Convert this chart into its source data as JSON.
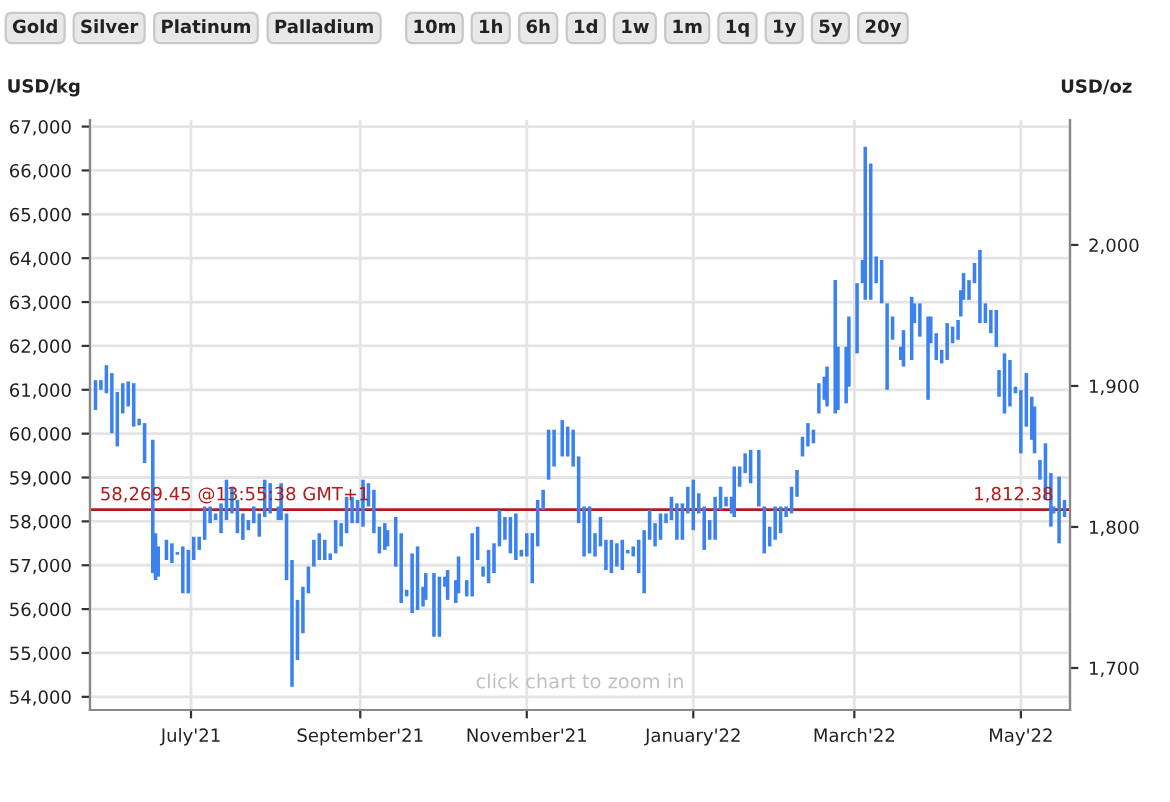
{
  "chart_data": {
    "type": "bar",
    "ylabel": "USD/kg",
    "y2label": "USD/oz",
    "annotations": [
      {
        "text": "1,812.38",
        "x": "2022-05-13",
        "y": 58269.45
      },
      "Gold",
      "Silver",
      "Platinum",
      "Palladium",
      "10m",
      "1h",
      "6h",
      "1d",
      "1w",
      "1m",
      "1q",
      "1y",
      "5y",
      "20y",
      "click chart to zoom in"
    ],
    "x": [
      "2021-05-27",
      "2021-05-29",
      "2021-05-31",
      "2021-06-02",
      "2021-06-04",
      "2021-06-06",
      "2021-06-08",
      "2021-06-10",
      "2021-06-12",
      "2021-06-14",
      "2021-06-17",
      "2021-06-18",
      "2021-06-19",
      "2021-06-22",
      "2021-06-24",
      "2021-06-26",
      "2021-06-28",
      "2021-06-30",
      "2021-07-02",
      "2021-07-04",
      "2021-07-06",
      "2021-07-08",
      "2021-07-10",
      "2021-07-12",
      "2021-07-14",
      "2021-07-16",
      "2021-07-18",
      "2021-07-20",
      "2021-07-22",
      "2021-07-24",
      "2021-07-26",
      "2021-07-28",
      "2021-07-30",
      "2021-08-02",
      "2021-08-03",
      "2021-08-05",
      "2021-08-07",
      "2021-08-09",
      "2021-08-11",
      "2021-08-13",
      "2021-08-15",
      "2021-08-17",
      "2021-08-19",
      "2021-08-21",
      "2021-08-23",
      "2021-08-25",
      "2021-08-27",
      "2021-08-29",
      "2021-08-31",
      "2021-09-02",
      "2021-09-04",
      "2021-09-06",
      "2021-09-08",
      "2021-09-10",
      "2021-09-11",
      "2021-09-14",
      "2021-09-16",
      "2021-09-18",
      "2021-09-20",
      "2021-09-22",
      "2021-09-24",
      "2021-09-25",
      "2021-09-28",
      "2021-09-30",
      "2021-10-02",
      "2021-10-03",
      "2021-10-06",
      "2021-10-07",
      "2021-10-10",
      "2021-10-12",
      "2021-10-14",
      "2021-10-16",
      "2021-10-18",
      "2021-10-20",
      "2021-10-22",
      "2021-10-24",
      "2021-10-26",
      "2021-10-28",
      "2021-10-30",
      "2021-11-01",
      "2021-11-03",
      "2021-11-05",
      "2021-11-07",
      "2021-11-09",
      "2021-11-11",
      "2021-11-14",
      "2021-11-16",
      "2021-11-18",
      "2021-11-20",
      "2021-11-22",
      "2021-11-24",
      "2021-11-26",
      "2021-11-28",
      "2021-11-30",
      "2021-12-02",
      "2021-12-04",
      "2021-12-06",
      "2021-12-08",
      "2021-12-10",
      "2021-12-12",
      "2021-12-14",
      "2021-12-16",
      "2021-12-18",
      "2021-12-20",
      "2021-12-22",
      "2021-12-24",
      "2021-12-26",
      "2021-12-28",
      "2021-12-30",
      "2022-01-01",
      "2022-01-03",
      "2022-01-05",
      "2022-01-07",
      "2022-01-09",
      "2022-01-11",
      "2022-01-13",
      "2022-01-15",
      "2022-01-16",
      "2022-01-18",
      "2022-01-20",
      "2022-01-22",
      "2022-01-25",
      "2022-01-27",
      "2022-01-29",
      "2022-01-31",
      "2022-02-02",
      "2022-02-04",
      "2022-02-06",
      "2022-02-08",
      "2022-02-10",
      "2022-02-12",
      "2022-02-14",
      "2022-02-16",
      "2022-02-18",
      "2022-02-19",
      "2022-02-22",
      "2022-02-23",
      "2022-02-26",
      "2022-02-27",
      "2022-03-02",
      "2022-03-04",
      "2022-03-05",
      "2022-03-07",
      "2022-03-09",
      "2022-03-11",
      "2022-03-13",
      "2022-03-15",
      "2022-03-18",
      "2022-03-19",
      "2022-03-22",
      "2022-03-23",
      "2022-03-25",
      "2022-03-28",
      "2022-03-29",
      "2022-03-31",
      "2022-04-02",
      "2022-04-04",
      "2022-04-06",
      "2022-04-08",
      "2022-04-09",
      "2022-04-10",
      "2022-04-12",
      "2022-04-14",
      "2022-04-16",
      "2022-04-18",
      "2022-04-20",
      "2022-04-22",
      "2022-04-23",
      "2022-04-25",
      "2022-04-27",
      "2022-04-29",
      "2022-05-01",
      "2022-05-03",
      "2022-05-05",
      "2022-05-06",
      "2022-05-08",
      "2022-05-10",
      "2022-05-12",
      "2022-05-13",
      "2022-05-15",
      "2022-05-17"
    ],
    "base": [
      60540,
      61000,
      60920,
      60010,
      59710,
      60460,
      60620,
      60160,
      60190,
      59330,
      56820,
      56660,
      56740,
      57120,
      57050,
      57240,
      56360,
      56360,
      57120,
      57350,
      57580,
      57960,
      58030,
      57730,
      58030,
      58180,
      57730,
      57580,
      57800,
      57960,
      57650,
      58100,
      58180,
      58030,
      58030,
      56660,
      54230,
      54840,
      55450,
      56360,
      56970,
      57120,
      57120,
      57120,
      57270,
      57430,
      57730,
      57960,
      57960,
      57880,
      58340,
      57730,
      57270,
      57350,
      57430,
      56970,
      56140,
      56290,
      55910,
      55980,
      56060,
      56210,
      55370,
      55370,
      56510,
      56210,
      56140,
      56360,
      56290,
      56290,
      57120,
      56740,
      56590,
      56820,
      57430,
      57580,
      57270,
      57120,
      57200,
      57200,
      56590,
      57430,
      58260,
      58950,
      59250,
      59480,
      59480,
      59250,
      57960,
      57200,
      57270,
      57200,
      57430,
      56890,
      56820,
      56970,
      56890,
      57270,
      57200,
      56820,
      56360,
      57580,
      57430,
      57580,
      57960,
      58030,
      57580,
      57580,
      58180,
      57800,
      58180,
      57350,
      57580,
      57580,
      58260,
      58340,
      58180,
      58100,
      58790,
      59100,
      58870,
      58340,
      57270,
      57430,
      57580,
      57730,
      58100,
      58180,
      58560,
      59480,
      59710,
      59780,
      60460,
      60770,
      60620,
      60460,
      60540,
      60690,
      61070,
      61830,
      63430,
      63050,
      63050,
      63430,
      62970,
      61000,
      62140,
      61680,
      61530,
      61680,
      62520,
      62210,
      60770,
      62060,
      61680,
      61600,
      61680,
      62060,
      62140,
      62670,
      63050,
      63050,
      63430,
      62520,
      62520,
      62290,
      61980,
      60840,
      60460,
      60620,
      60920,
      59550,
      60160,
      59860,
      59550,
      58950,
      58490,
      57880,
      58180,
      57500,
      58100
    ],
    "values": [
      680,
      220,
      640,
      1370,
      1240,
      690,
      570,
      990,
      150,
      910,
      3040,
      1070,
      690,
      460,
      450,
      60,
      1070,
      990,
      530,
      300,
      760,
      380,
      150,
      680,
      920,
      610,
      760,
      600,
      230,
      380,
      530,
      850,
      690,
      310,
      840,
      1520,
      2890,
      1370,
      1060,
      610,
      610,
      610,
      460,
      150,
      760,
      530,
      830,
      600,
      530,
      1070,
      530,
      990,
      610,
      610,
      370,
      1130,
      1590,
      150,
      1360,
      1450,
      450,
      610,
      1450,
      1370,
      230,
      680,
      520,
      840,
      370,
      1440,
      760,
      230,
      760,
      680,
      830,
      520,
      830,
      1060,
      150,
      530,
      1140,
      1060,
      460,
      1140,
      840,
      830,
      680,
      840,
      1520,
      1140,
      1070,
      530,
      670,
      690,
      760,
      530,
      690,
      80,
      230,
      760,
      1440,
      680,
      530,
      600,
      220,
      530,
      830,
      830,
      610,
      1150,
      460,
      990,
      450,
      980,
      530,
      220,
      380,
      1150,
      460,
      450,
      760,
      1290,
      1070,
      450,
      760,
      610,
      240,
      610,
      610,
      450,
      530,
      310,
      690,
      530,
      910,
      3040,
      1440,
      1290,
      1600,
      1600,
      530,
      3490,
      3110,
      610,
      990,
      1970,
      530,
      300,
      830,
      1440,
      450,
      760,
      1900,
      610,
      610,
      310,
      840,
      380,
      450,
      600,
      610,
      450,
      460,
      1670,
      450,
      530,
      840,
      610,
      1370,
      1060,
      150,
      1440,
      1220,
      980,
      1070,
      450,
      1290,
      1220,
      160,
      1520,
      390
    ],
    "color": "#3b82f0",
    "xlim": [
      "2021-05-25",
      "2022-05-19"
    ],
    "xticks": [
      {
        "value": "2021-07-01",
        "label": "July'21"
      },
      {
        "value": "2021-09-01",
        "label": "September'21"
      },
      {
        "value": "2021-11-01",
        "label": "November'21"
      },
      {
        "value": "2022-01-01",
        "label": "January'22"
      },
      {
        "value": "2022-03-01",
        "label": "March'22"
      },
      {
        "value": "2022-05-01",
        "label": "May'22"
      }
    ],
    "ylim": [
      53700,
      67150
    ],
    "yticks": [
      {
        "value": 54000,
        "label": "54,000"
      },
      {
        "value": 55000,
        "label": "55,000"
      },
      {
        "value": 56000,
        "label": "56,000"
      },
      {
        "value": 57000,
        "label": "57,000"
      },
      {
        "value": 58000,
        "label": "58,000"
      },
      {
        "value": 59000,
        "label": "59,000"
      },
      {
        "value": 60000,
        "label": "60,000"
      },
      {
        "value": 61000,
        "label": "61,000"
      },
      {
        "value": 62000,
        "label": "62,000"
      },
      {
        "value": 63000,
        "label": "63,000"
      },
      {
        "value": 64000,
        "label": "64,000"
      },
      {
        "value": 65000,
        "label": "65,000"
      },
      {
        "value": 66000,
        "label": "66,000"
      },
      {
        "value": 67000,
        "label": "67,000"
      }
    ],
    "y2lim": [
      1670.2,
      2088.6
    ],
    "y2ticks": [
      {
        "value": 1700,
        "label": "1,700"
      },
      {
        "value": 1800,
        "label": "1,800"
      },
      {
        "value": 1900,
        "label": "1,900"
      },
      {
        "value": 2000,
        "label": "2,000"
      }
    ],
    "ref_lines": [
      {
        "axis": "y",
        "value": 58269.45,
        "label": "58,269.45 @13:55:38 GMT+1",
        "color": "#b01c1c"
      }
    ],
    "grid": true
  }
}
